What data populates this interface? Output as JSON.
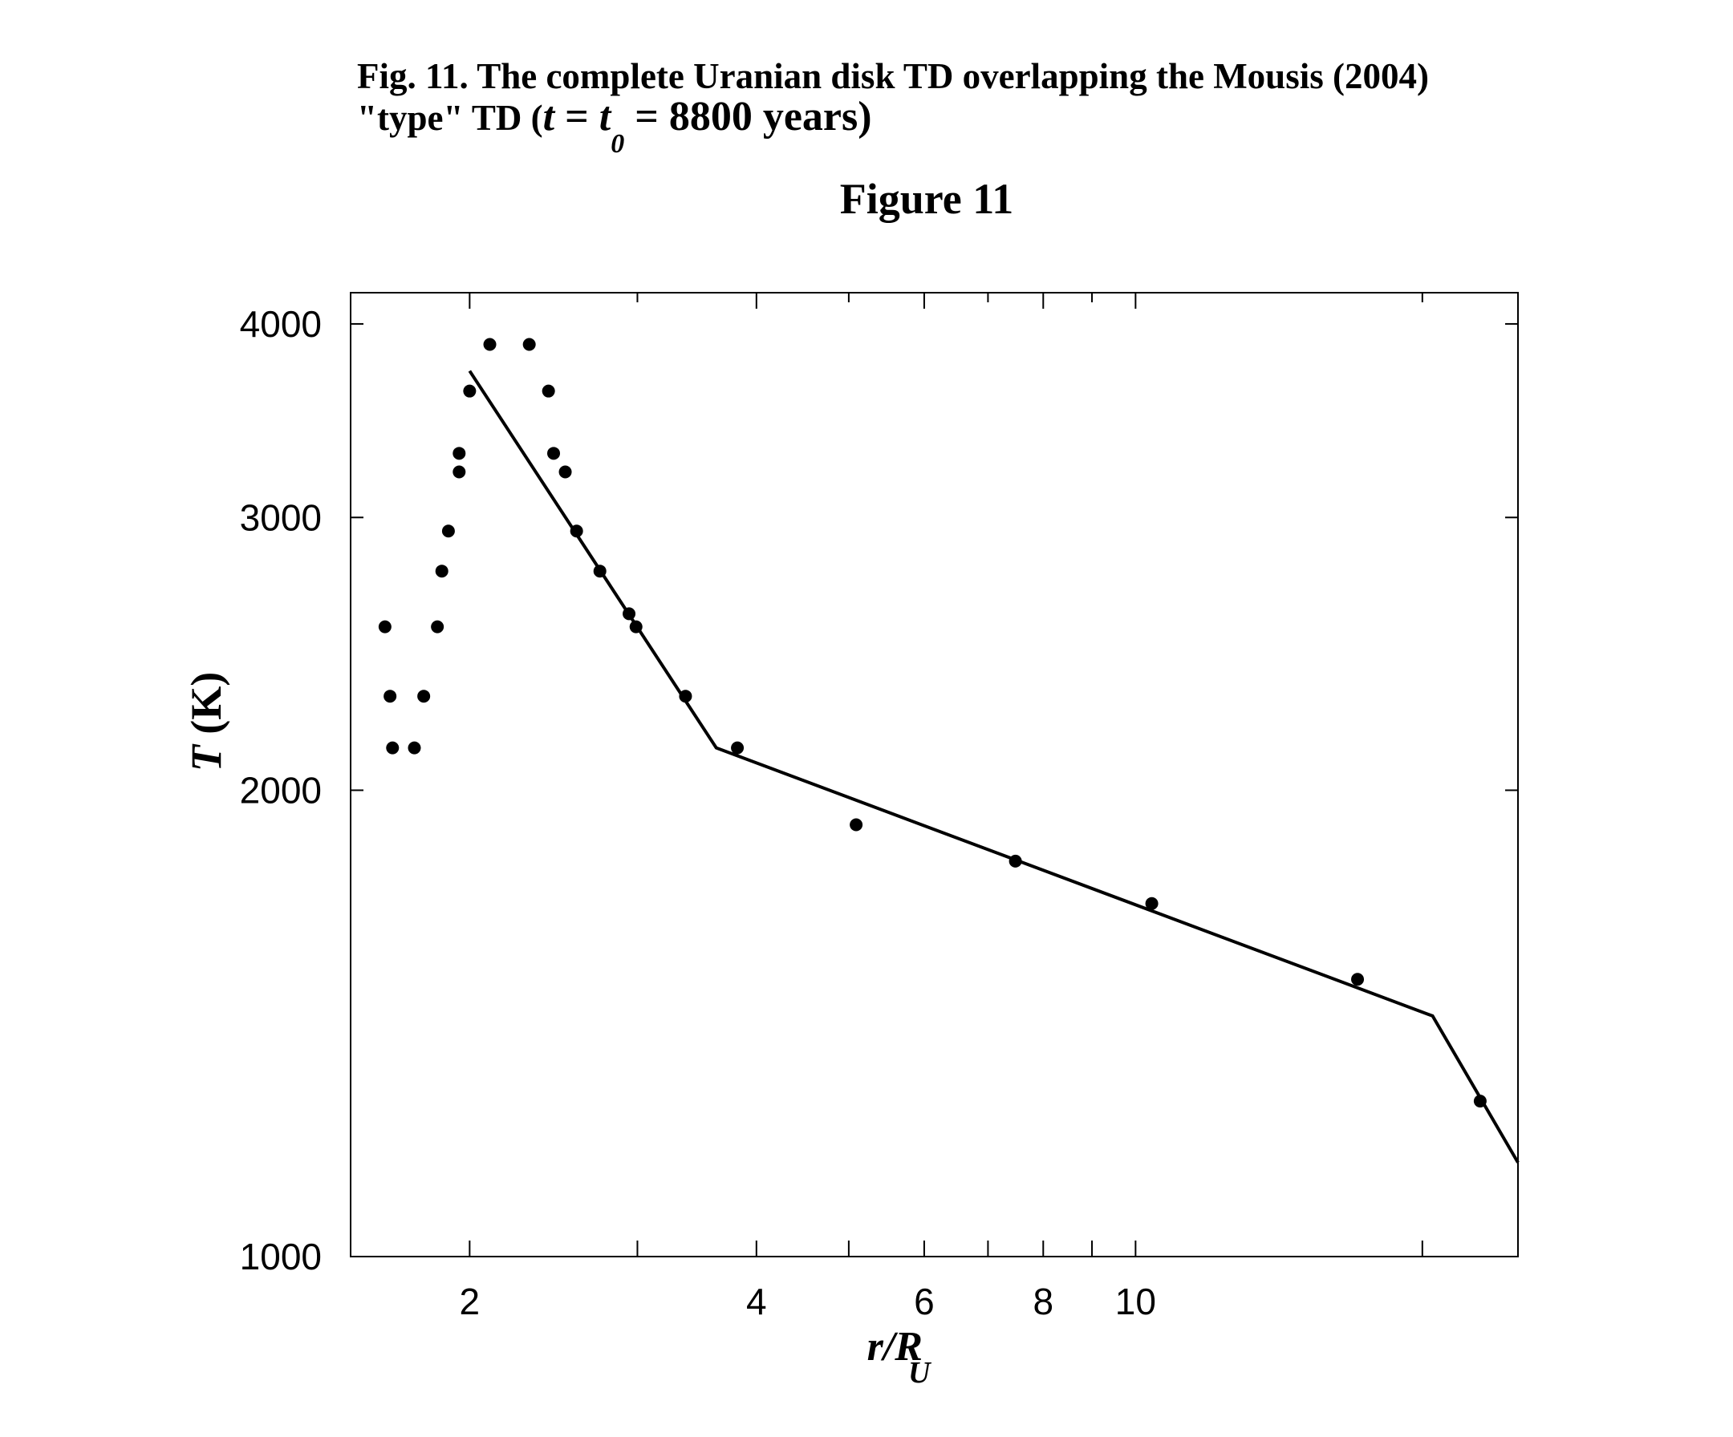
{
  "chart_data": {
    "type": "scatter",
    "title": "Fig. 11. The complete Uranian disk TD overlapping the Mousis (2004)",
    "title_line2": [
      "\"type\" TD (",
      "t",
      " = ",
      "t",
      "0",
      " = 8800 years)"
    ],
    "subtitle": "Figure 11",
    "xlabel": [
      "r/R",
      "U"
    ],
    "ylabel": [
      "T",
      " (K)"
    ],
    "xscale": "log",
    "yscale": "log",
    "xlim": [
      1.5,
      25.2
    ],
    "ylim": [
      1000,
      4190
    ],
    "xticks": [
      2,
      4,
      6,
      8,
      10
    ],
    "xminor_ticks": [
      3,
      5,
      7,
      9,
      20
    ],
    "yticks": [
      1000,
      2000,
      3000,
      4000
    ],
    "series": [
      {
        "type": "scatter",
        "color": "#000000",
        "x": [
          1.63,
          1.65,
          1.66,
          1.75,
          1.79,
          1.85,
          1.87,
          1.9,
          1.95,
          1.95,
          2.0,
          2.1,
          2.31,
          2.42,
          2.45,
          2.52,
          2.59,
          2.74,
          2.94,
          2.99,
          3.37,
          3.82,
          5.09,
          7.48,
          10.4,
          17.1,
          23.0
        ],
        "values": [
          2550,
          2300,
          2130,
          2130,
          2300,
          2550,
          2770,
          2940,
          3210,
          3300,
          3620,
          3880,
          3880,
          3620,
          3300,
          3210,
          2940,
          2770,
          2600,
          2550,
          2300,
          2130,
          1900,
          1800,
          1690,
          1510,
          1260
        ]
      },
      {
        "type": "line",
        "color": "#000000",
        "x": [
          2.0,
          3.63,
          20.5,
          25.2
        ],
        "values": [
          3730,
          2130,
          1430,
          1150
        ]
      }
    ]
  }
}
